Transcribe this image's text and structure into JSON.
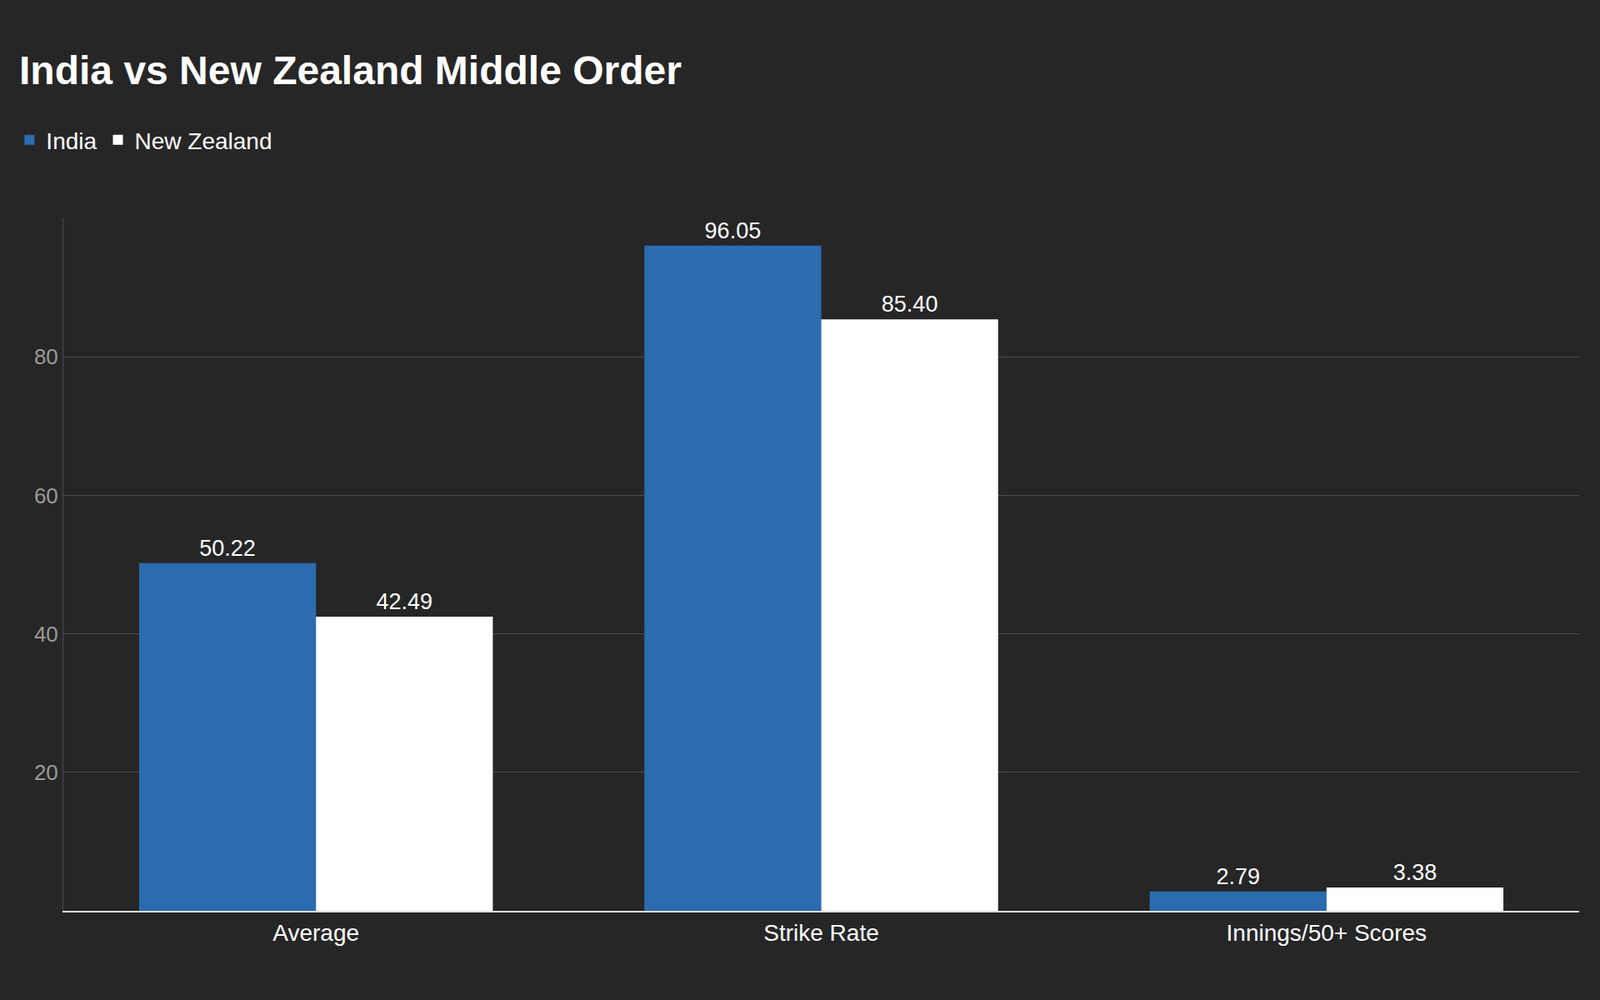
{
  "chart_data": {
    "type": "bar",
    "title": "India vs New Zealand Middle Order",
    "categories": [
      "Average",
      "Strike Rate",
      "Innings/50+ Scores"
    ],
    "series": [
      {
        "name": "India",
        "color": "#2b6cb0",
        "values": [
          50.22,
          96.05,
          2.79
        ],
        "value_labels": [
          "50.22",
          "96.05",
          "2.79"
        ]
      },
      {
        "name": "New Zealand",
        "color": "#ffffff",
        "values": [
          42.49,
          85.4,
          3.38
        ],
        "value_labels": [
          "42.49",
          "85.40",
          "3.38"
        ]
      }
    ],
    "ylim": [
      0,
      100
    ],
    "yticks": [
      20,
      40,
      60,
      80
    ],
    "grid": true,
    "legend": "top-left",
    "data_labels": true
  }
}
